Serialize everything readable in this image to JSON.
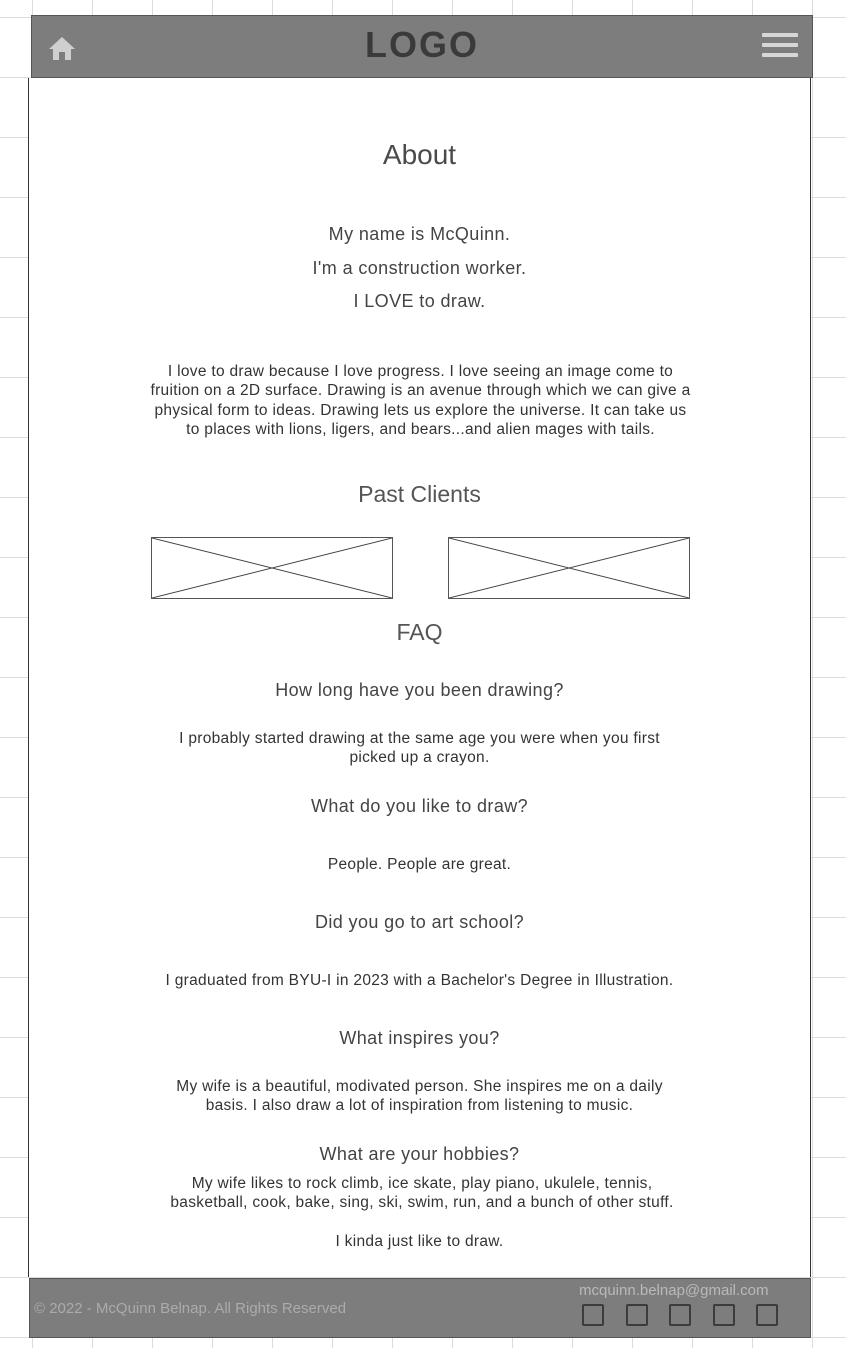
{
  "header": {
    "logo": "LOGO",
    "home_icon": "home-icon",
    "menu_icon": "hamburger-menu-icon"
  },
  "about": {
    "title": "About",
    "intro_lines": [
      "My name is McQuinn.",
      "I'm a construction worker.",
      "I LOVE to draw."
    ],
    "paragraph": "I love to draw because I love progress. I love seeing an image come to fruition on a 2D surface. Drawing is an avenue through which we can give a physical form to ideas. Drawing lets us explore the universe. It can take us to places with lions, ligers, and bears...and alien mages with tails."
  },
  "clients": {
    "title": "Past Clients"
  },
  "faq": {
    "title": "FAQ",
    "items": [
      {
        "q": "How long have you been drawing?",
        "a": "I probably started drawing at the same age you were when you first picked up a crayon."
      },
      {
        "q": "What do you like to draw?",
        "a": "People. People are great."
      },
      {
        "q": "Did you go to art school?",
        "a": "I graduated from BYU-I in 2023 with a Bachelor's Degree in Illustration."
      },
      {
        "q": "What inspires you?",
        "a": "My wife is a beautiful, modivated person. She inspires me on a daily basis. I also draw a lot of inspiration from listening to music."
      },
      {
        "q": "What are your hobbies?",
        "a": "My wife likes to rock climb, ice skate, play piano, ukulele, tennis, basketball, cook, bake, sing, ski, swim, run, and a bunch of other stuff.",
        "a2": "I kinda just like to draw."
      }
    ]
  },
  "footer": {
    "copyright": "© 2022 - McQuinn Belnap. All Rights Reserved",
    "email": "mcquinn.belnap@gmail.com",
    "social_icons": [
      "social-icon-1",
      "social-icon-2",
      "social-icon-3",
      "social-icon-4",
      "social-icon-5"
    ]
  },
  "colors": {
    "header_bg": "#7d7d7d",
    "footer_bg": "#7d7d7d",
    "menu_bars": "#d6d6d6"
  }
}
